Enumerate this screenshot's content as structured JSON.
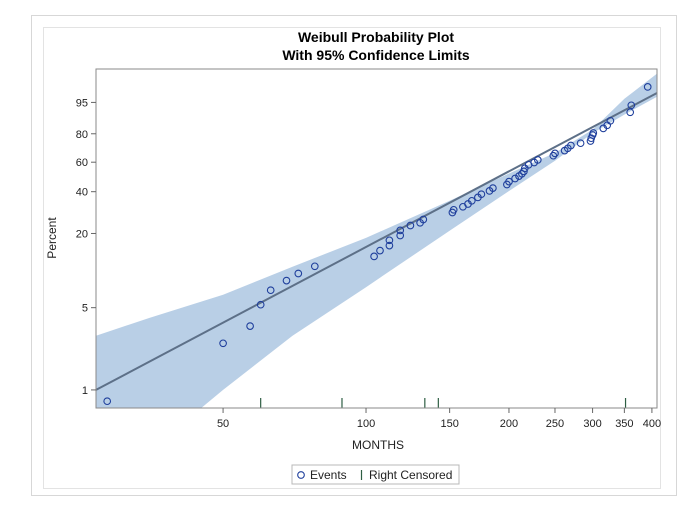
{
  "chart_data": {
    "type": "scatter",
    "title": "Weibull Probability Plot",
    "subtitle": "With 95% Confidence Limits",
    "xlabel": "MONTHS",
    "ylabel": "Percent",
    "x_scale": "log",
    "y_scale": "weibull",
    "xlim": [
      27,
      410
    ],
    "ylim": [
      0.7,
      99.7
    ],
    "x_ticks": [
      50,
      100,
      150,
      200,
      250,
      300,
      350,
      400
    ],
    "y_ticks": [
      1,
      5,
      20,
      40,
      60,
      80,
      95
    ],
    "legend": {
      "placement": "bottom",
      "items": [
        {
          "label": "Events",
          "marker": "circle"
        },
        {
          "label": "Right Censored",
          "marker": "bar"
        }
      ]
    },
    "colors": {
      "band": "#b9cfe6",
      "line": "#5d7088",
      "marker": "#1f3f9c",
      "censor": "#2e5e43"
    },
    "fit_line": {
      "x": [
        27,
        410
      ],
      "y": [
        1.0,
        97.3
      ]
    },
    "confidence_band": {
      "x": [
        27,
        35,
        50,
        70,
        100,
        150,
        200,
        250,
        300,
        350,
        410
      ],
      "lower": [
        0.1,
        0.3,
        1.0,
        2.9,
        7.4,
        21.0,
        40.4,
        61.0,
        80.4,
        90.5,
        96.5
      ],
      "upper": [
        2.9,
        4.1,
        6.4,
        10.9,
        18.5,
        34.7,
        51.9,
        66.8,
        82.6,
        96.0,
        99.5
      ]
    },
    "events": {
      "x": [
        28.5,
        50,
        57,
        60,
        63,
        68,
        72,
        78,
        104,
        107,
        112,
        112,
        118,
        118,
        124,
        130,
        132,
        152,
        153,
        160,
        164,
        167,
        172,
        175,
        182,
        185,
        198,
        200,
        206,
        210,
        213,
        215,
        216,
        220,
        226,
        230,
        248,
        250,
        262,
        266,
        270,
        283,
        297,
        298,
        300,
        301,
        316,
        322,
        327,
        360,
        362,
        392
      ],
      "y": [
        0.8,
        2.5,
        3.5,
        5.3,
        7.0,
        8.4,
        9.6,
        11.0,
        13.2,
        14.7,
        16.1,
        17.7,
        19.3,
        21.1,
        23.0,
        24.1,
        25.5,
        28.7,
        30.0,
        31.5,
        33.0,
        34.7,
        36.6,
        38.5,
        40.5,
        42.2,
        44.5,
        46.4,
        48.5,
        50.1,
        51.7,
        53.4,
        55.6,
        58.1,
        59.8,
        61.7,
        64.7,
        66.4,
        68.4,
        70.1,
        72.1,
        73.7,
        75.2,
        77.1,
        79.2,
        80.5,
        83.3,
        85.1,
        87.5,
        91.5,
        94.1,
        98.3
      ]
    },
    "right_censored": {
      "x": [
        60,
        89,
        133,
        142,
        352
      ]
    }
  }
}
